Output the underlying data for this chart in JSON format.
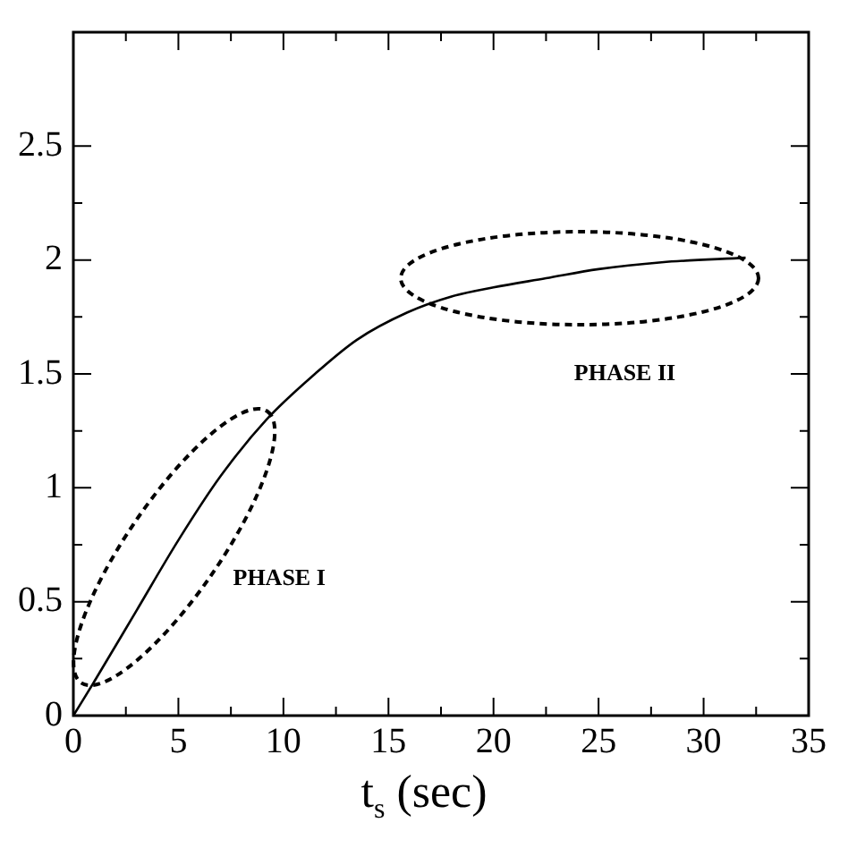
{
  "chart_data": {
    "type": "line",
    "xlabel": "t$_{s}$ (sec)",
    "x": [
      0,
      1,
      3,
      5,
      7,
      9.2,
      11.5,
      13.5,
      15.9,
      18,
      20,
      22.5,
      25,
      28,
      32
    ],
    "series": [
      {
        "color": "#000000",
        "values": [
          0,
          0.15,
          0.46,
          0.77,
          1.05,
          1.3,
          1.5,
          1.65,
          1.77,
          1.84,
          1.88,
          1.92,
          1.96,
          1.99,
          2.01
        ]
      }
    ],
    "xlim": [
      0,
      35
    ],
    "xticks": [
      0,
      5,
      10,
      15,
      20,
      25,
      30,
      35
    ],
    "ylim": [
      0,
      3
    ],
    "yticks": [
      0,
      0.5,
      1,
      1.5,
      2,
      2.5
    ],
    "grid": false,
    "legend": false,
    "marker": "none",
    "line_style": "solid",
    "annotations": [
      "PHASE I",
      "PHASE II"
    ]
  }
}
